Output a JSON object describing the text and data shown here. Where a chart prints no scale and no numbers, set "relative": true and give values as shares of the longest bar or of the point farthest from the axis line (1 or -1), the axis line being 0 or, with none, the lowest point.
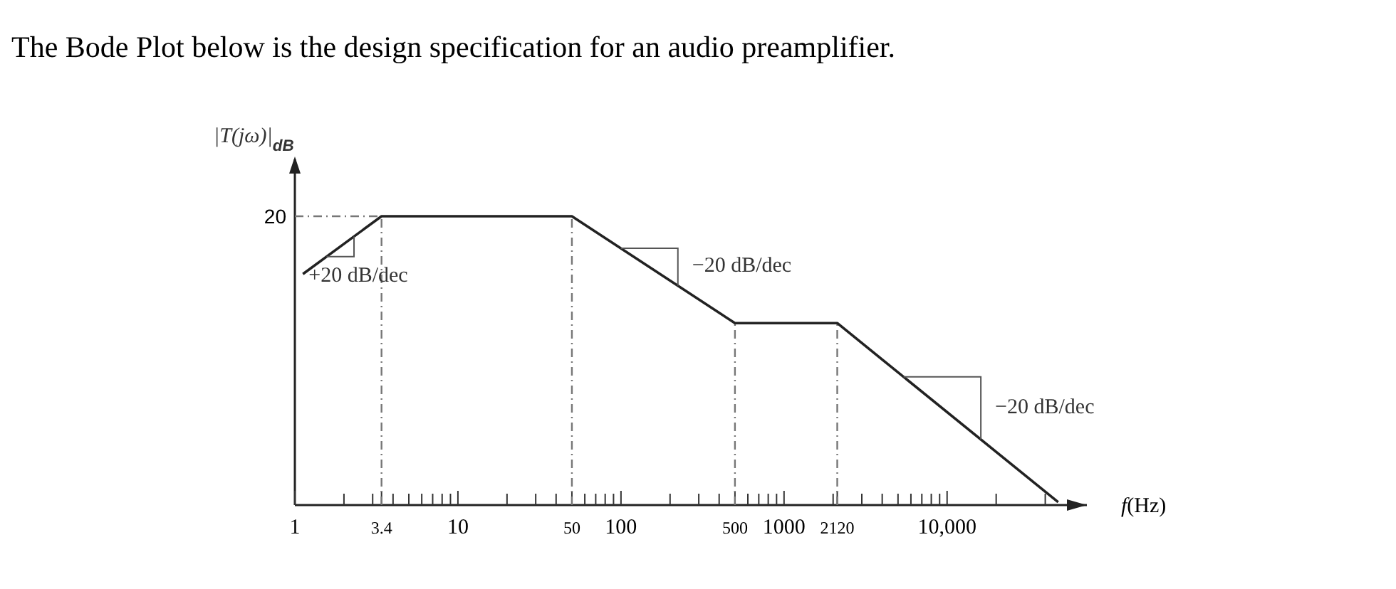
{
  "chart_data": {
    "type": "line",
    "title": "The Bode Plot below is the design specification for an audio preamplifier.",
    "ylabel": "|T(jω)|$_{dB}$",
    "xlabel": "f(Hz)",
    "relative": true,
    "log": "x",
    "xlim": [
      1,
      72000
    ],
    "xticks": [
      {
        "value": 1,
        "label": "1"
      },
      {
        "value": 2,
        "label": null
      },
      {
        "value": 3,
        "label": null
      },
      {
        "value": 3.4,
        "label": "3.4"
      },
      {
        "value": 4,
        "label": null
      },
      {
        "value": 5,
        "label": null
      },
      {
        "value": 6,
        "label": null
      },
      {
        "value": 7,
        "label": null
      },
      {
        "value": 8,
        "label": null
      },
      {
        "value": 9,
        "label": null
      },
      {
        "value": 10,
        "label": "10"
      },
      {
        "value": 20,
        "label": null
      },
      {
        "value": 30,
        "label": null
      },
      {
        "value": 40,
        "label": null
      },
      {
        "value": 50,
        "label": "50"
      },
      {
        "value": 60,
        "label": null
      },
      {
        "value": 70,
        "label": null
      },
      {
        "value": 80,
        "label": null
      },
      {
        "value": 90,
        "label": null
      },
      {
        "value": 100,
        "label": "100"
      },
      {
        "value": 200,
        "label": null
      },
      {
        "value": 300,
        "label": null
      },
      {
        "value": 400,
        "label": null
      },
      {
        "value": 500,
        "label": "500"
      },
      {
        "value": 600,
        "label": null
      },
      {
        "value": 700,
        "label": null
      },
      {
        "value": 800,
        "label": null
      },
      {
        "value": 900,
        "label": null
      },
      {
        "value": 1000,
        "label": "1000"
      },
      {
        "value": 2000,
        "label": null
      },
      {
        "value": 2120,
        "label": "2120"
      },
      {
        "value": 3000,
        "label": null
      },
      {
        "value": 4000,
        "label": null
      },
      {
        "value": 5000,
        "label": null
      },
      {
        "value": 6000,
        "label": null
      },
      {
        "value": 7000,
        "label": null
      },
      {
        "value": 8000,
        "label": null
      },
      {
        "value": 9000,
        "label": null
      },
      {
        "value": 10000,
        "label": "10,000"
      },
      {
        "value": 20000,
        "label": null
      },
      {
        "value": 40000,
        "label": null
      }
    ],
    "series": [
      {
        "color": "#222222",
        "x": [
          1.12,
          3.4,
          50,
          500,
          2120,
          48000
        ],
        "values": [
          0.8,
          1,
          1,
          0.63,
          0.63,
          0.01
        ]
      }
    ],
    "line_style": "solid",
    "ref_lines": [
      {
        "axis": "y",
        "value": 1,
        "line_style": "dashed"
      },
      {
        "axis": "x",
        "value": 3.4,
        "line_style": "dashed"
      },
      {
        "axis": "x",
        "value": 50,
        "line_style": "dashed"
      },
      {
        "axis": "x",
        "value": 500,
        "line_style": "dashed"
      },
      {
        "axis": "x",
        "value": 2120,
        "line_style": "dashed"
      }
    ],
    "annotations": [
      "+20 dB/dec",
      "−20 dB/dec",
      "−20 dB/dec",
      "20"
    ]
  }
}
